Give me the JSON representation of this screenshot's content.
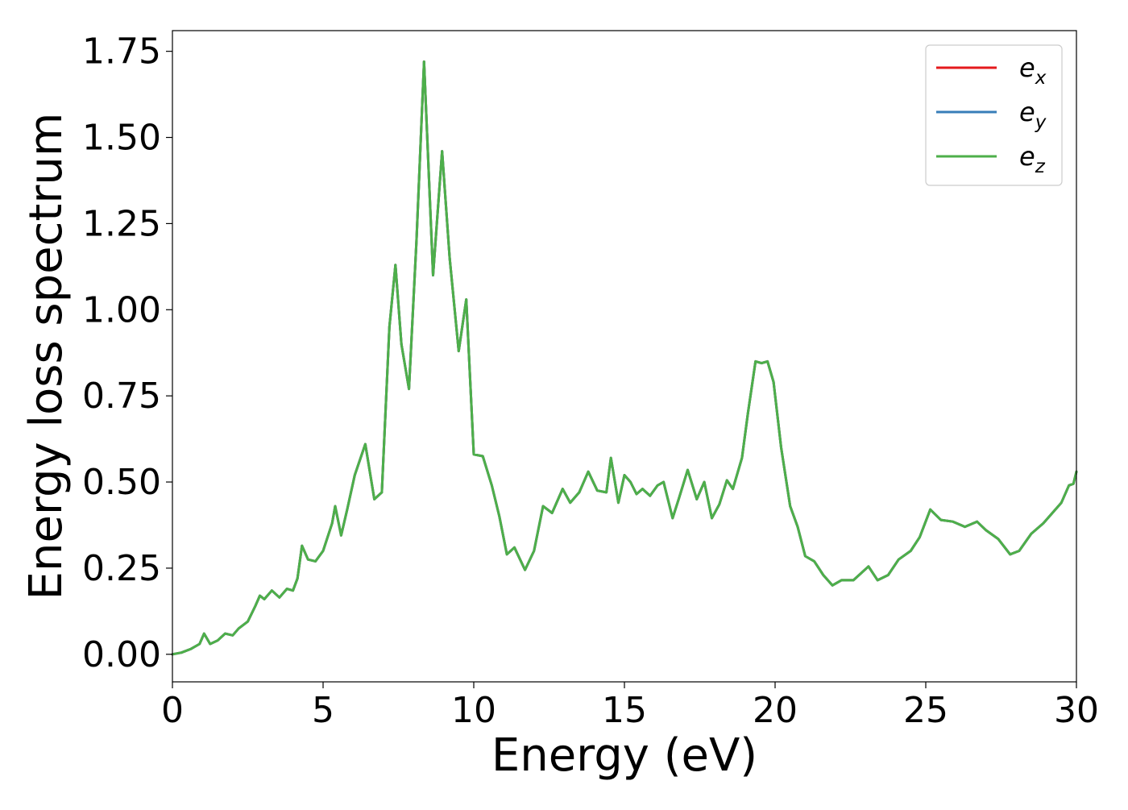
{
  "chart_data": {
    "type": "line",
    "title": "",
    "xlabel": "Energy (eV)",
    "ylabel": "Energy loss spectrum",
    "xlim": [
      0,
      30
    ],
    "ylim": [
      -0.08,
      1.81
    ],
    "xticks": [
      0,
      5,
      10,
      15,
      20,
      25,
      30
    ],
    "xtick_labels": [
      "0",
      "5",
      "10",
      "15",
      "20",
      "25",
      "30"
    ],
    "yticks": [
      0.0,
      0.25,
      0.5,
      0.75,
      1.0,
      1.25,
      1.5,
      1.75
    ],
    "ytick_labels": [
      "0.00",
      "0.25",
      "0.50",
      "0.75",
      "1.00",
      "1.25",
      "1.50",
      "1.75"
    ],
    "grid": false,
    "legend_position": "top-right",
    "legend": [
      {
        "base": "e",
        "sub": "x",
        "color": "#e41a1c"
      },
      {
        "base": "e",
        "sub": "y",
        "color": "#377eb8"
      },
      {
        "base": "e",
        "sub": "z",
        "color": "#4daf4a"
      }
    ],
    "series": [
      {
        "name": "e_x",
        "color": "#e41a1c",
        "x": [
          0,
          0.3,
          0.6,
          0.9,
          1.05,
          1.25,
          1.5,
          1.75,
          2.0,
          2.2,
          2.5,
          2.75,
          2.9,
          3.05,
          3.3,
          3.55,
          3.8,
          4.0,
          4.15,
          4.3,
          4.5,
          4.75,
          5.0,
          5.3,
          5.4,
          5.6,
          5.8,
          6.05,
          6.4,
          6.7,
          6.95,
          7.2,
          7.4,
          7.6,
          7.85,
          8.1,
          8.35,
          8.65,
          8.95,
          9.2,
          9.5,
          9.75,
          10.0,
          10.3,
          10.6,
          10.85,
          11.1,
          11.35,
          11.7,
          12.0,
          12.3,
          12.6,
          12.95,
          13.2,
          13.5,
          13.8,
          14.1,
          14.4,
          14.55,
          14.8,
          15.0,
          15.2,
          15.4,
          15.6,
          15.85,
          16.1,
          16.3,
          16.6,
          16.8,
          17.1,
          17.4,
          17.65,
          17.9,
          18.15,
          18.4,
          18.6,
          18.9,
          19.1,
          19.35,
          19.55,
          19.75,
          19.95,
          20.2,
          20.5,
          20.75,
          21.0,
          21.3,
          21.6,
          21.9,
          22.2,
          22.6,
          23.1,
          23.4,
          23.75,
          24.1,
          24.5,
          24.8,
          25.15,
          25.5,
          25.9,
          26.3,
          26.7,
          27.0,
          27.4,
          27.8,
          28.1,
          28.5,
          28.9,
          29.2,
          29.5,
          29.75,
          29.9,
          30.0
        ],
        "values": [
          0.0,
          0.005,
          0.015,
          0.03,
          0.06,
          0.03,
          0.04,
          0.06,
          0.055,
          0.075,
          0.095,
          0.14,
          0.17,
          0.16,
          0.185,
          0.165,
          0.19,
          0.185,
          0.22,
          0.315,
          0.275,
          0.27,
          0.3,
          0.38,
          0.43,
          0.345,
          0.42,
          0.52,
          0.61,
          0.45,
          0.47,
          0.95,
          1.13,
          0.9,
          0.77,
          1.2,
          1.72,
          1.1,
          1.46,
          1.15,
          0.88,
          1.03,
          0.58,
          0.575,
          0.49,
          0.4,
          0.29,
          0.31,
          0.245,
          0.3,
          0.43,
          0.41,
          0.48,
          0.44,
          0.47,
          0.53,
          0.475,
          0.47,
          0.57,
          0.44,
          0.52,
          0.5,
          0.465,
          0.48,
          0.46,
          0.49,
          0.5,
          0.395,
          0.45,
          0.535,
          0.45,
          0.5,
          0.395,
          0.435,
          0.505,
          0.48,
          0.57,
          0.7,
          0.85,
          0.845,
          0.85,
          0.79,
          0.6,
          0.43,
          0.37,
          0.285,
          0.27,
          0.23,
          0.2,
          0.215,
          0.215,
          0.255,
          0.215,
          0.23,
          0.275,
          0.3,
          0.34,
          0.42,
          0.39,
          0.385,
          0.37,
          0.385,
          0.36,
          0.335,
          0.29,
          0.3,
          0.35,
          0.38,
          0.41,
          0.44,
          0.49,
          0.495,
          0.53
        ]
      },
      {
        "name": "e_y",
        "color": "#377eb8",
        "x": [
          0,
          0.3,
          0.6,
          0.9,
          1.05,
          1.25,
          1.5,
          1.75,
          2.0,
          2.2,
          2.5,
          2.75,
          2.9,
          3.05,
          3.3,
          3.55,
          3.8,
          4.0,
          4.15,
          4.3,
          4.5,
          4.75,
          5.0,
          5.3,
          5.4,
          5.6,
          5.8,
          6.05,
          6.4,
          6.7,
          6.95,
          7.2,
          7.4,
          7.6,
          7.85,
          8.1,
          8.35,
          8.65,
          8.95,
          9.2,
          9.5,
          9.75,
          10.0,
          10.3,
          10.6,
          10.85,
          11.1,
          11.35,
          11.7,
          12.0,
          12.3,
          12.6,
          12.95,
          13.2,
          13.5,
          13.8,
          14.1,
          14.4,
          14.55,
          14.8,
          15.0,
          15.2,
          15.4,
          15.6,
          15.85,
          16.1,
          16.3,
          16.6,
          16.8,
          17.1,
          17.4,
          17.65,
          17.9,
          18.15,
          18.4,
          18.6,
          18.9,
          19.1,
          19.35,
          19.55,
          19.75,
          19.95,
          20.2,
          20.5,
          20.75,
          21.0,
          21.3,
          21.6,
          21.9,
          22.2,
          22.6,
          23.1,
          23.4,
          23.75,
          24.1,
          24.5,
          24.8,
          25.15,
          25.5,
          25.9,
          26.3,
          26.7,
          27.0,
          27.4,
          27.8,
          28.1,
          28.5,
          28.9,
          29.2,
          29.5,
          29.75,
          29.9,
          30.0
        ],
        "values": [
          0.0,
          0.005,
          0.015,
          0.03,
          0.06,
          0.03,
          0.04,
          0.06,
          0.055,
          0.075,
          0.095,
          0.14,
          0.17,
          0.16,
          0.185,
          0.165,
          0.19,
          0.185,
          0.22,
          0.315,
          0.275,
          0.27,
          0.3,
          0.38,
          0.43,
          0.345,
          0.42,
          0.52,
          0.61,
          0.45,
          0.47,
          0.95,
          1.13,
          0.9,
          0.77,
          1.2,
          1.72,
          1.1,
          1.46,
          1.15,
          0.88,
          1.03,
          0.58,
          0.575,
          0.49,
          0.4,
          0.29,
          0.31,
          0.245,
          0.3,
          0.43,
          0.41,
          0.48,
          0.44,
          0.47,
          0.53,
          0.475,
          0.47,
          0.57,
          0.44,
          0.52,
          0.5,
          0.465,
          0.48,
          0.46,
          0.49,
          0.5,
          0.395,
          0.45,
          0.535,
          0.45,
          0.5,
          0.395,
          0.435,
          0.505,
          0.48,
          0.57,
          0.7,
          0.85,
          0.845,
          0.85,
          0.79,
          0.6,
          0.43,
          0.37,
          0.285,
          0.27,
          0.23,
          0.2,
          0.215,
          0.215,
          0.255,
          0.215,
          0.23,
          0.275,
          0.3,
          0.34,
          0.42,
          0.39,
          0.385,
          0.37,
          0.385,
          0.36,
          0.335,
          0.29,
          0.3,
          0.35,
          0.38,
          0.41,
          0.44,
          0.49,
          0.495,
          0.53
        ]
      },
      {
        "name": "e_z",
        "color": "#4daf4a",
        "x": [
          0,
          0.3,
          0.6,
          0.9,
          1.05,
          1.25,
          1.5,
          1.75,
          2.0,
          2.2,
          2.5,
          2.75,
          2.9,
          3.05,
          3.3,
          3.55,
          3.8,
          4.0,
          4.15,
          4.3,
          4.5,
          4.75,
          5.0,
          5.3,
          5.4,
          5.6,
          5.8,
          6.05,
          6.4,
          6.7,
          6.95,
          7.2,
          7.4,
          7.6,
          7.85,
          8.1,
          8.35,
          8.65,
          8.95,
          9.2,
          9.5,
          9.75,
          10.0,
          10.3,
          10.6,
          10.85,
          11.1,
          11.35,
          11.7,
          12.0,
          12.3,
          12.6,
          12.95,
          13.2,
          13.5,
          13.8,
          14.1,
          14.4,
          14.55,
          14.8,
          15.0,
          15.2,
          15.4,
          15.6,
          15.85,
          16.1,
          16.3,
          16.6,
          16.8,
          17.1,
          17.4,
          17.65,
          17.9,
          18.15,
          18.4,
          18.6,
          18.9,
          19.1,
          19.35,
          19.55,
          19.75,
          19.95,
          20.2,
          20.5,
          20.75,
          21.0,
          21.3,
          21.6,
          21.9,
          22.2,
          22.6,
          23.1,
          23.4,
          23.75,
          24.1,
          24.5,
          24.8,
          25.15,
          25.5,
          25.9,
          26.3,
          26.7,
          27.0,
          27.4,
          27.8,
          28.1,
          28.5,
          28.9,
          29.2,
          29.5,
          29.75,
          29.9,
          30.0
        ],
        "values": [
          0.0,
          0.005,
          0.015,
          0.03,
          0.06,
          0.03,
          0.04,
          0.06,
          0.055,
          0.075,
          0.095,
          0.14,
          0.17,
          0.16,
          0.185,
          0.165,
          0.19,
          0.185,
          0.22,
          0.315,
          0.275,
          0.27,
          0.3,
          0.38,
          0.43,
          0.345,
          0.42,
          0.52,
          0.61,
          0.45,
          0.47,
          0.95,
          1.13,
          0.9,
          0.77,
          1.2,
          1.72,
          1.1,
          1.46,
          1.15,
          0.88,
          1.03,
          0.58,
          0.575,
          0.49,
          0.4,
          0.29,
          0.31,
          0.245,
          0.3,
          0.43,
          0.41,
          0.48,
          0.44,
          0.47,
          0.53,
          0.475,
          0.47,
          0.57,
          0.44,
          0.52,
          0.5,
          0.465,
          0.48,
          0.46,
          0.49,
          0.5,
          0.395,
          0.45,
          0.535,
          0.45,
          0.5,
          0.395,
          0.435,
          0.505,
          0.48,
          0.57,
          0.7,
          0.85,
          0.845,
          0.85,
          0.79,
          0.6,
          0.43,
          0.37,
          0.285,
          0.27,
          0.23,
          0.2,
          0.215,
          0.215,
          0.255,
          0.215,
          0.23,
          0.275,
          0.3,
          0.34,
          0.42,
          0.39,
          0.385,
          0.37,
          0.385,
          0.36,
          0.335,
          0.29,
          0.3,
          0.35,
          0.38,
          0.41,
          0.44,
          0.49,
          0.495,
          0.53
        ]
      }
    ]
  }
}
